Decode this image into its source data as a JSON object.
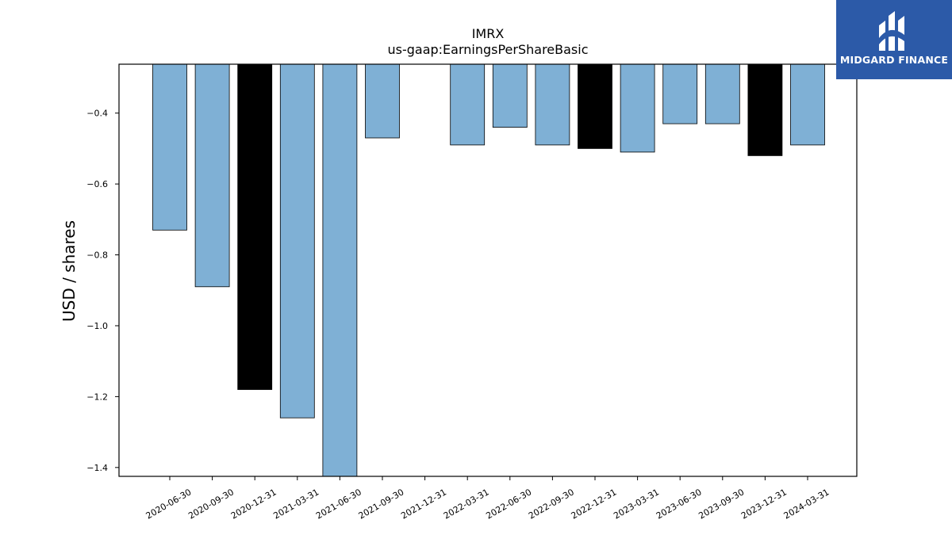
{
  "chart_data": {
    "type": "bar",
    "title": "IMRX",
    "subtitle": "us-gaap:EarningsPerShareBasic",
    "xlabel": "",
    "ylabel": "USD / shares",
    "categories": [
      "2020-06-30",
      "2020-09-30",
      "2020-12-31",
      "2021-03-31",
      "2021-06-30",
      "2021-09-30",
      "2021-12-31",
      "2022-03-31",
      "2022-06-30",
      "2022-09-30",
      "2022-12-31",
      "2023-03-31",
      "2023-06-30",
      "2023-09-30",
      "2023-12-31",
      "2024-03-31"
    ],
    "values": [
      -0.73,
      -0.89,
      -1.18,
      -1.26,
      -1.45,
      -0.47,
      null,
      -0.49,
      -0.44,
      -0.49,
      -0.5,
      -0.51,
      -0.43,
      -0.43,
      -0.52,
      -0.49
    ],
    "highlighted": [
      false,
      false,
      true,
      false,
      false,
      false,
      false,
      false,
      false,
      false,
      true,
      false,
      false,
      false,
      true,
      false
    ],
    "ylim": [
      -1.425,
      -0.262
    ],
    "yticks": [
      -0.4,
      -0.6,
      -0.8,
      -1.0,
      -1.2,
      -1.4
    ],
    "ytick_labels": [
      "−0.4",
      "−0.6",
      "−0.8",
      "−1.0",
      "−1.2",
      "−1.4"
    ],
    "colors": {
      "bar": "#7fb0d5",
      "highlight": "#000000",
      "edge": "#000000"
    },
    "grid": false,
    "legend": "none"
  },
  "logo": {
    "text": "MIDGARD FINANCE",
    "color": "#2c5aa8"
  }
}
